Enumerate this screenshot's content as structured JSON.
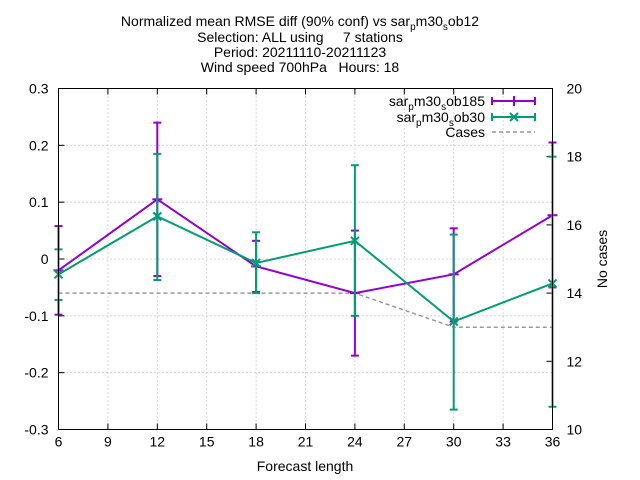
{
  "chart_data": {
    "type": "line",
    "title": {
      "line1": {
        "pre": "Normalized mean RMSE diff (90% conf) vs sar",
        "sub1": "p",
        "mid": "m30",
        "sub2": "s",
        "post": "ob12"
      },
      "line2": "Selection: ALL using     7 stations",
      "line3": "Period: 20211110-20211123",
      "line4": "Wind speed 700hPa   Hours: 18"
    },
    "xlabel": "Forecast length",
    "ylabel_right": "No cases",
    "xlim": [
      6,
      36
    ],
    "ylim": [
      -0.3,
      0.3
    ],
    "y2lim": [
      10,
      20
    ],
    "x_ticks": [
      "6",
      "9",
      "12",
      "15",
      "18",
      "21",
      "24",
      "27",
      "30",
      "33",
      "36"
    ],
    "y_ticks": [
      "-0.3",
      "-0.2",
      "-0.1",
      "0",
      "0.1",
      "0.2",
      "0.3"
    ],
    "y2_ticks": [
      "10",
      "12",
      "14",
      "16",
      "18",
      "20"
    ],
    "grid": true,
    "legend_position": "top-right",
    "x": [
      6,
      12,
      18,
      24,
      30,
      36
    ],
    "series": [
      {
        "name_parts": {
          "a": "sar",
          "s1": "p",
          "b": "m30",
          "s2": "s",
          "c": "ob185"
        },
        "color": "#9400d3",
        "marker": "plus",
        "values": [
          -0.02,
          0.105,
          -0.013,
          -0.06,
          -0.027,
          0.077
        ],
        "err_low": [
          -0.098,
          -0.03,
          -0.058,
          -0.17,
          -0.11,
          -0.05
        ],
        "err_high": [
          0.058,
          0.24,
          0.032,
          0.05,
          0.054,
          0.205
        ]
      },
      {
        "name_parts": {
          "a": "sar",
          "s1": "p",
          "b": "m30",
          "s2": "s",
          "c": "ob30"
        },
        "color": "#009e73",
        "marker": "cross",
        "values": [
          -0.027,
          0.075,
          -0.007,
          0.032,
          -0.11,
          -0.043
        ],
        "err_low": [
          -0.072,
          -0.037,
          -0.06,
          -0.1,
          -0.265,
          -0.26
        ],
        "err_high": [
          0.017,
          0.185,
          0.047,
          0.165,
          0.043,
          0.18
        ]
      }
    ],
    "cases": {
      "name": "Cases",
      "color": "#999999",
      "x": [
        6,
        12,
        18,
        24,
        30,
        36
      ],
      "values": [
        14,
        14,
        14,
        14,
        13,
        13
      ]
    }
  }
}
